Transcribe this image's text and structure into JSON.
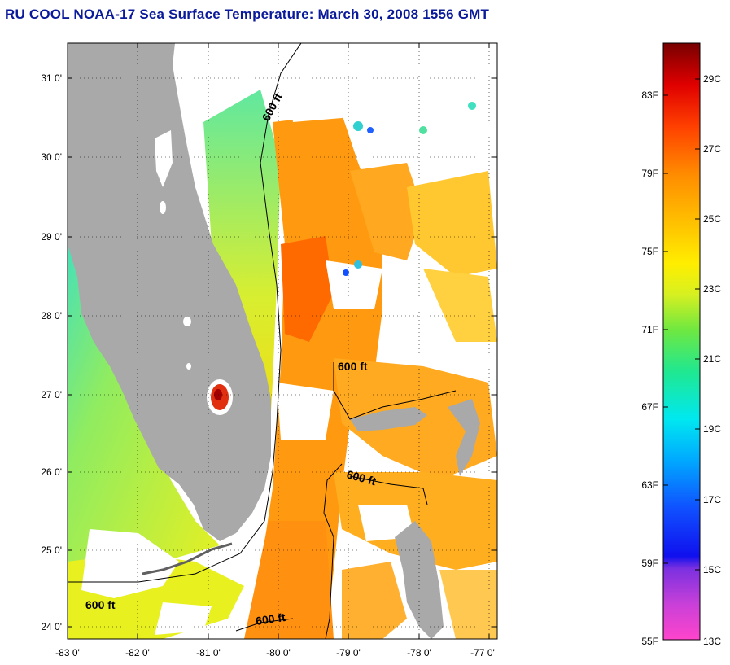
{
  "title": "RU COOL  NOAA-17  Sea Surface Temperature:  March 30, 2008 1556 GMT",
  "colors": {
    "land": "#a9a9a9",
    "cloud": "#ffffff",
    "title": "#0a1a9a"
  },
  "map": {
    "lon_range": [
      -83,
      -76.9
    ],
    "lat_range": [
      23.8,
      31.45
    ],
    "lat_ticks": [
      "31 0'",
      "30 0'",
      "29 0'",
      "28 0'",
      "27 0'",
      "26 0'",
      "25 0'",
      "24 0'"
    ],
    "lon_ticks": [
      "-83 0'",
      "-82 0'",
      "-81 0'",
      "-80 0'",
      "-79 0'",
      "-78 0'",
      "-77 0'"
    ],
    "grid": "dotted",
    "isobath_label": "600 ft"
  },
  "colorbar": {
    "fahrenheit_labels": [
      "83F",
      "79F",
      "75F",
      "71F",
      "67F",
      "63F",
      "59F",
      "55F"
    ],
    "celsius_labels": [
      "29C",
      "27C",
      "25C",
      "23C",
      "21C",
      "19C",
      "17C",
      "15C",
      "13C"
    ],
    "range_c": [
      13,
      30
    ]
  }
}
